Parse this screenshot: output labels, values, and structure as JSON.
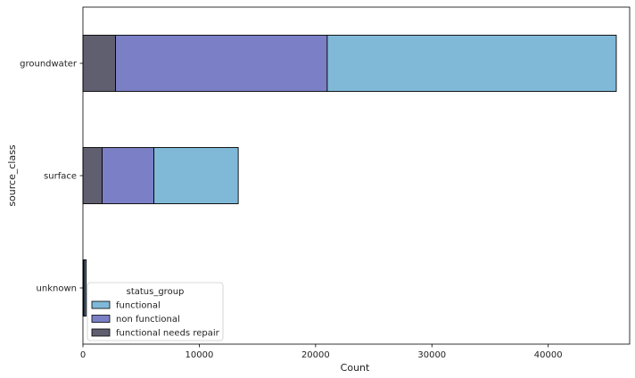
{
  "chart_data": {
    "type": "bar",
    "orientation": "horizontal",
    "stacked": true,
    "categories": [
      "groundwater",
      "surface",
      "unknown"
    ],
    "xlabel": "Count",
    "ylabel": "source_class",
    "xlim": [
      0,
      47000
    ],
    "xticks": [
      0,
      10000,
      20000,
      30000,
      40000
    ],
    "grid": false,
    "series": [
      {
        "name": "functional needs repair",
        "values": [
          2800,
          1650,
          60
        ],
        "color": "#5f5f70"
      },
      {
        "name": "non functional",
        "values": [
          18200,
          4450,
          90
        ],
        "color": "#7b80c6"
      },
      {
        "name": "functional",
        "values": [
          24850,
          7250,
          130
        ],
        "color": "#80b9d8"
      }
    ],
    "legend": {
      "title": "status_group",
      "placement": "lower-left",
      "entries": [
        "functional",
        "non functional",
        "functional needs repair"
      ]
    }
  }
}
